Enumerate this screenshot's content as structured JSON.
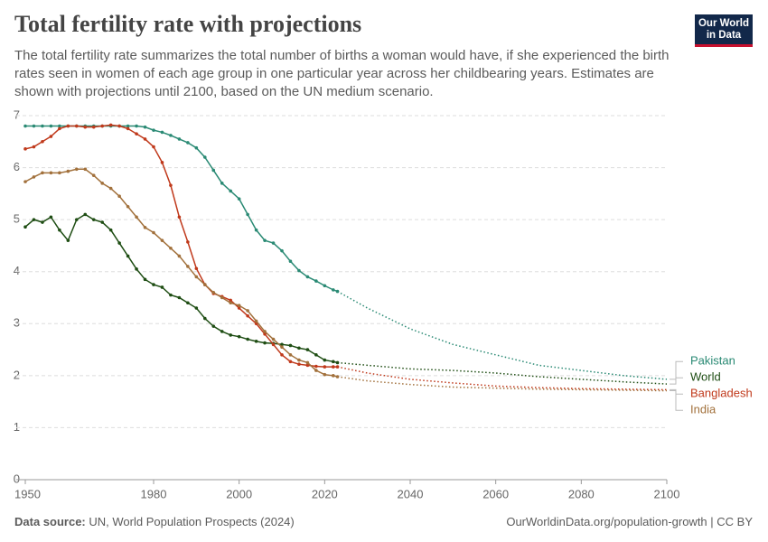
{
  "chart_data": {
    "type": "line",
    "title": "Total fertility rate with projections",
    "subtitle": "The total fertility rate summarizes the total number of births a woman would have, if she experienced the birth rates seen in women of each age group in one particular year across her childbearing years. Estimates are shown with projections until 2100, based on the UN medium scenario.",
    "logo": [
      "Our World",
      "in Data"
    ],
    "source_label": "Data source:",
    "source": "UN, World Population Prospects (2024)",
    "url": "OurWorldinData.org/population-growth | CC BY",
    "x": [
      1950,
      1952,
      1954,
      1956,
      1958,
      1960,
      1962,
      1964,
      1966,
      1968,
      1970,
      1972,
      1974,
      1976,
      1978,
      1980,
      1982,
      1984,
      1986,
      1988,
      1990,
      1992,
      1994,
      1996,
      1998,
      2000,
      2002,
      2004,
      2006,
      2008,
      2010,
      2012,
      2014,
      2016,
      2018,
      2020,
      2022,
      2023,
      2030,
      2040,
      2050,
      2060,
      2070,
      2080,
      2090,
      2100
    ],
    "projection_from": 2023,
    "series": [
      {
        "name": "Pakistan",
        "color": "#2a8a74",
        "values": [
          6.8,
          6.8,
          6.8,
          6.8,
          6.8,
          6.8,
          6.8,
          6.8,
          6.8,
          6.8,
          6.8,
          6.8,
          6.8,
          6.8,
          6.78,
          6.72,
          6.68,
          6.62,
          6.55,
          6.48,
          6.38,
          6.2,
          5.95,
          5.7,
          5.55,
          5.4,
          5.1,
          4.8,
          4.6,
          4.55,
          4.4,
          4.2,
          4.02,
          3.9,
          3.82,
          3.73,
          3.65,
          3.62,
          3.3,
          2.9,
          2.6,
          2.4,
          2.2,
          2.1,
          2.0,
          1.93
        ]
      },
      {
        "name": "World",
        "color": "#1e4d13",
        "values": [
          4.86,
          5.0,
          4.95,
          5.05,
          4.8,
          4.6,
          5.0,
          5.1,
          5.0,
          4.95,
          4.8,
          4.55,
          4.3,
          4.05,
          3.85,
          3.75,
          3.7,
          3.55,
          3.5,
          3.4,
          3.3,
          3.1,
          2.95,
          2.85,
          2.78,
          2.75,
          2.7,
          2.66,
          2.63,
          2.62,
          2.6,
          2.58,
          2.53,
          2.5,
          2.4,
          2.3,
          2.27,
          2.25,
          2.2,
          2.13,
          2.1,
          2.05,
          1.98,
          1.93,
          1.88,
          1.84
        ]
      },
      {
        "name": "Bangladesh",
        "color": "#c0391b",
        "values": [
          6.36,
          6.4,
          6.5,
          6.6,
          6.75,
          6.8,
          6.8,
          6.78,
          6.78,
          6.8,
          6.82,
          6.8,
          6.75,
          6.65,
          6.55,
          6.4,
          6.1,
          5.66,
          5.05,
          4.57,
          4.06,
          3.75,
          3.58,
          3.52,
          3.45,
          3.3,
          3.15,
          3.0,
          2.8,
          2.6,
          2.4,
          2.27,
          2.22,
          2.2,
          2.18,
          2.17,
          2.17,
          2.17,
          2.05,
          1.93,
          1.86,
          1.8,
          1.77,
          1.75,
          1.74,
          1.73
        ]
      },
      {
        "name": "India",
        "color": "#a2713c",
        "values": [
          5.73,
          5.82,
          5.9,
          5.9,
          5.9,
          5.93,
          5.97,
          5.97,
          5.85,
          5.7,
          5.6,
          5.45,
          5.25,
          5.05,
          4.85,
          4.75,
          4.6,
          4.45,
          4.3,
          4.1,
          3.9,
          3.75,
          3.6,
          3.5,
          3.4,
          3.35,
          3.25,
          3.05,
          2.85,
          2.7,
          2.55,
          2.4,
          2.3,
          2.25,
          2.1,
          2.02,
          2.0,
          1.98,
          1.9,
          1.83,
          1.78,
          1.76,
          1.74,
          1.73,
          1.72,
          1.71
        ]
      }
    ],
    "xlim": [
      1950,
      2100
    ],
    "xticks": [
      1950,
      1980,
      2000,
      2020,
      2040,
      2060,
      2080,
      2100
    ],
    "ylim": [
      0,
      7
    ],
    "yticks": [
      0,
      1,
      2,
      3,
      4,
      5,
      6,
      7
    ],
    "grid": true
  }
}
